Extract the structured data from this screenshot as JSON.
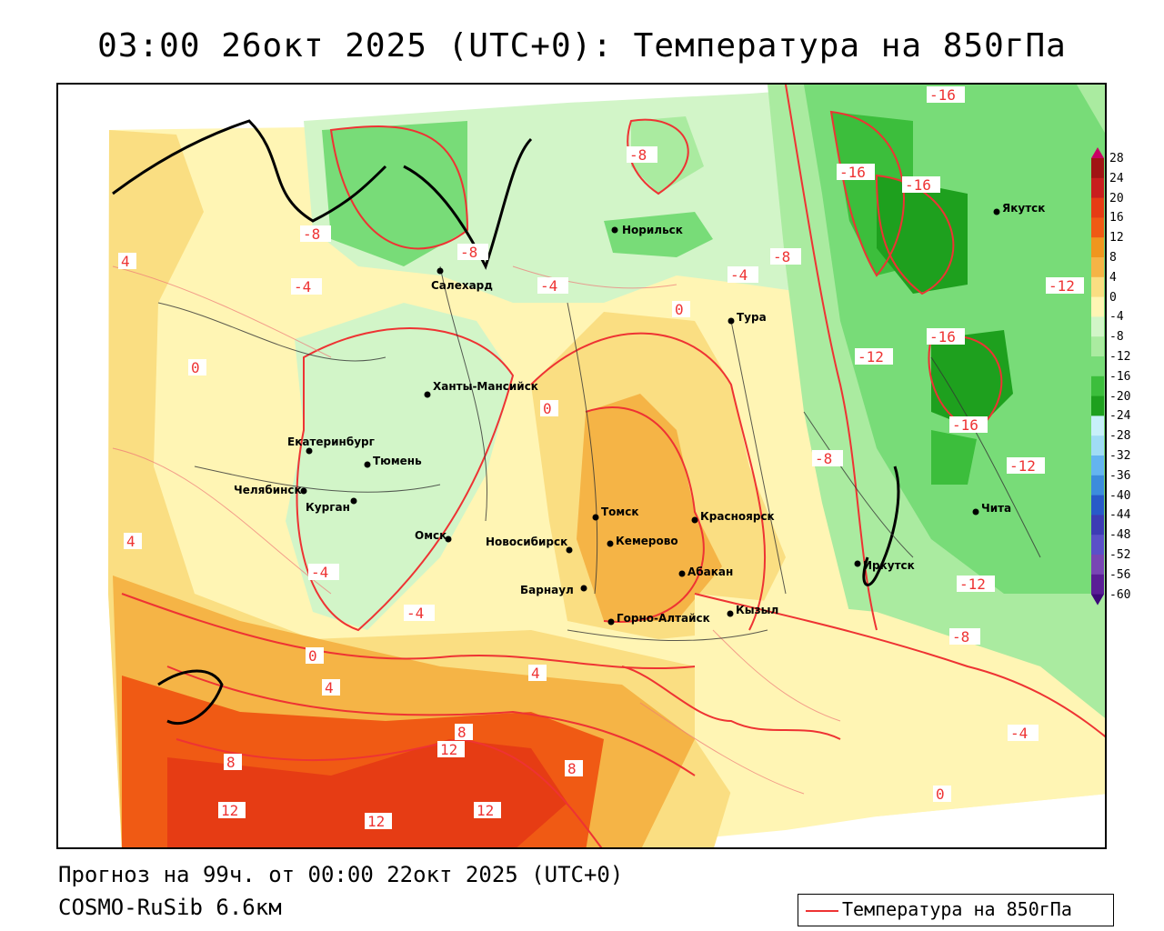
{
  "title": "03:00 26окт 2025 (UTC+0): Температура на 850гПа",
  "forecast_line": "Прогноз на 99ч. от 00:00 22окт 2025 (UTC+0)",
  "model_line": "COSMO-RuSib 6.6км",
  "legend": {
    "label": "Температура на 850гПа",
    "color": "#e33333"
  },
  "colorbar": {
    "labels": [
      "28",
      "24",
      "20",
      "16",
      "12",
      "8",
      "4",
      "0",
      "-4",
      "-8",
      "-12",
      "-16",
      "-20",
      "-24",
      "-28",
      "-32",
      "-36",
      "-40",
      "-44",
      "-48",
      "-52",
      "-56",
      "-60"
    ],
    "colors": [
      "#c80064",
      "#a01414",
      "#c81e1e",
      "#e63c14",
      "#f05a14",
      "#f0961e",
      "#f5b446",
      "#fade82",
      "#fff5b4",
      "#d2f5c8",
      "#aaeba0",
      "#78dc78",
      "#3cbe3c",
      "#1ea01e",
      "#c8f0fa",
      "#a0dcf5",
      "#64b4f0",
      "#3c8cdc",
      "#285ac8",
      "#3c3cb4",
      "#5a50c8",
      "#7846b4",
      "#5a1e96",
      "#3c0a78"
    ]
  },
  "cities": [
    {
      "name": "Норильск"
    },
    {
      "name": "Салехард"
    },
    {
      "name": "Якутск"
    },
    {
      "name": "Тура"
    },
    {
      "name": "Ханты-Мансийск"
    },
    {
      "name": "Екатеринбург"
    },
    {
      "name": "Тюмень"
    },
    {
      "name": "Челябинск"
    },
    {
      "name": "Курган"
    },
    {
      "name": "Омск"
    },
    {
      "name": "Томск"
    },
    {
      "name": "Красноярск"
    },
    {
      "name": "Новосибирск"
    },
    {
      "name": "Кемерово"
    },
    {
      "name": "Абакан"
    },
    {
      "name": "Барнаул"
    },
    {
      "name": "Иркутск"
    },
    {
      "name": "Кызыл"
    },
    {
      "name": "Горно-Алтайск"
    },
    {
      "name": "Чита"
    }
  ],
  "contour_labels": [
    "-16",
    "-16",
    "-16",
    "-16",
    "-16",
    "-12",
    "-12",
    "-12",
    "-12",
    "-8",
    "-8",
    "-8",
    "-8",
    "-8",
    "-8",
    "-4",
    "-4",
    "-4",
    "-4",
    "-4",
    "-4",
    "0",
    "0",
    "0",
    "0",
    "0",
    "4",
    "4",
    "4",
    "4",
    "8",
    "8",
    "8",
    "12",
    "12",
    "12",
    "12"
  ]
}
